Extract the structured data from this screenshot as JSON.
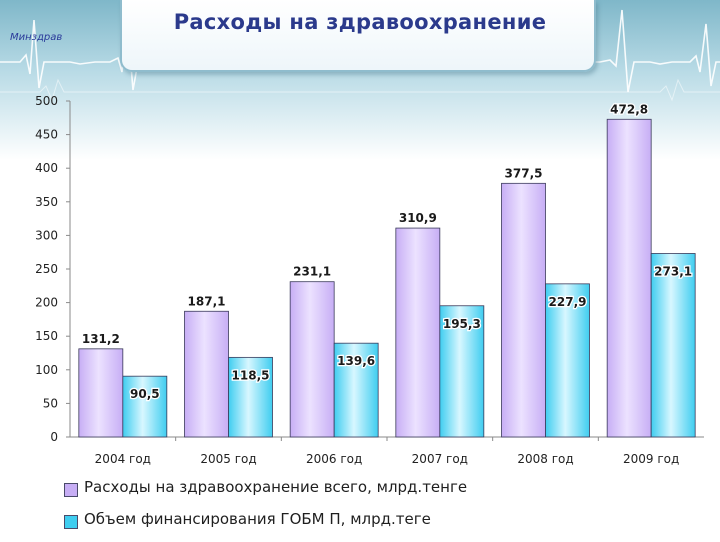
{
  "header": {
    "title": "Расходы на здравоохранение",
    "org_label": "Минздрав"
  },
  "colors": {
    "series1_fill": "#c7aef5",
    "series1_fill_light": "#ece2ff",
    "series2_fill": "#3fcdf0",
    "series2_fill_light": "#d8f7ff",
    "bar_stroke": "#3a3a5a",
    "title": "#2b3a8c"
  },
  "chart_data": {
    "type": "bar",
    "categories": [
      "2004 год",
      "2005 год",
      "2006 год",
      "2007 год",
      "2008 год",
      "2009 год"
    ],
    "series": [
      {
        "name": "Расходы на здравоохранение всего, млрд.тенге",
        "values": [
          131.2,
          187.1,
          231.1,
          310.9,
          377.5,
          472.8
        ],
        "labels": [
          "131,2",
          "187,1",
          "231,1",
          "310,9",
          "377,5",
          "472,8"
        ]
      },
      {
        "name": "Объем финансирования ГОБМ П, млрд.теге",
        "values": [
          90.5,
          118.5,
          139.6,
          195.3,
          227.9,
          273.1
        ],
        "labels": [
          "90,5",
          "118,5",
          "139,6",
          "195,3",
          "227,9",
          "273,1"
        ]
      }
    ],
    "yticks": [
      "0",
      "50",
      "100",
      "150",
      "200",
      "250",
      "300",
      "350",
      "400",
      "450",
      "500"
    ],
    "ylim": [
      0,
      500
    ],
    "grid": false,
    "legend_position": "bottom"
  }
}
